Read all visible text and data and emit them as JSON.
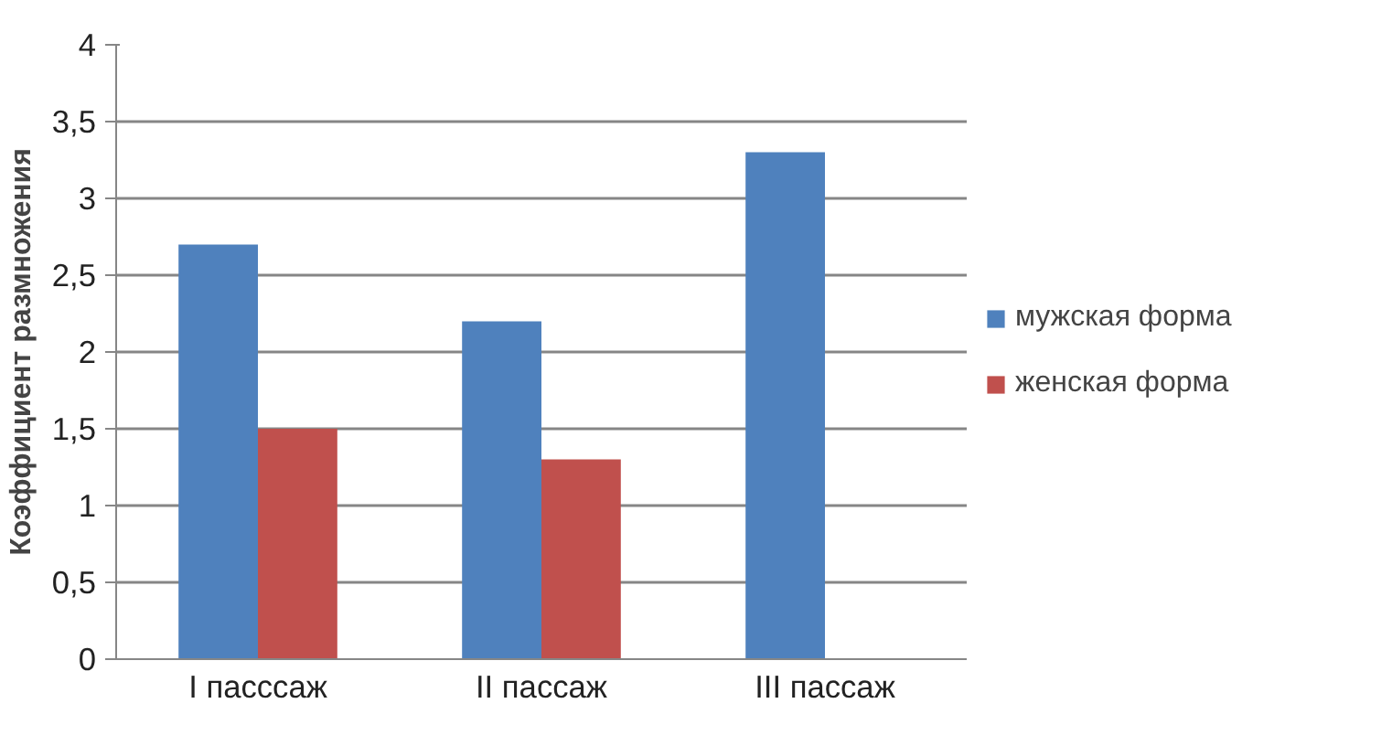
{
  "chart_data": {
    "type": "bar",
    "ylabel": "Коэффициент размножения",
    "categories": [
      "I пасссаж",
      "II пассаж",
      "III пассаж"
    ],
    "series": [
      {
        "name": "мужская форма",
        "color": "#4f81bd",
        "values": [
          2.7,
          2.2,
          3.3
        ]
      },
      {
        "name": "женская форма",
        "color": "#c0504d",
        "values": [
          1.5,
          1.3,
          null
        ]
      }
    ],
    "ylim": [
      0,
      4
    ],
    "yticks": [
      0,
      {
        "value": 0.5,
        "label": "0,5"
      },
      1,
      {
        "value": 1.5,
        "label": "1,5"
      },
      2,
      {
        "value": 2.5,
        "label": "2,5"
      },
      3,
      {
        "value": 3.5,
        "label": "3,5"
      },
      4
    ],
    "grid": "y",
    "legend": "right"
  }
}
